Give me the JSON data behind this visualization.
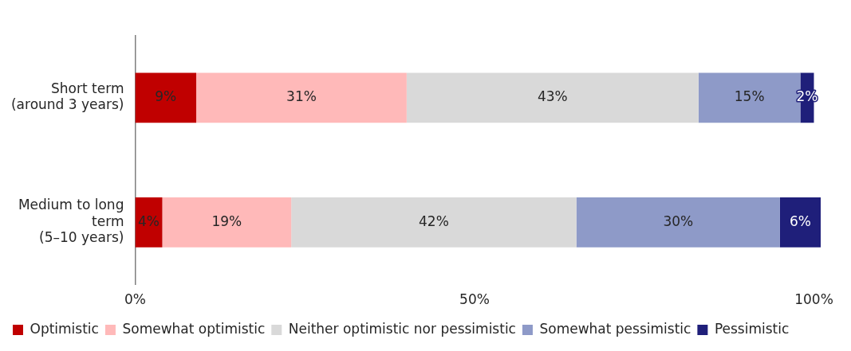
{
  "chart_data": {
    "type": "bar",
    "orientation": "horizontal",
    "stacked": true,
    "categories": [
      "Short term (around 3 years)",
      "Medium to long term (5–10 years)"
    ],
    "series": [
      {
        "name": "Optimistic",
        "color": "#c00000",
        "values": [
          9,
          4
        ]
      },
      {
        "name": "Somewhat optimistic",
        "color": "#ffb9b9",
        "values": [
          31,
          19
        ]
      },
      {
        "name": "Neither optimistic nor pessimistic",
        "color": "#d9d9d9",
        "values": [
          43,
          42
        ]
      },
      {
        "name": "Somewhat pessimistic",
        "color": "#8e9ac8",
        "values": [
          15,
          30
        ]
      },
      {
        "name": "Pessimistic",
        "color": "#1f1f7a",
        "values": [
          2,
          6
        ]
      }
    ],
    "xlim": [
      0,
      101
    ],
    "xticks": [
      {
        "value": 0,
        "label": "0%"
      },
      {
        "value": 50,
        "label": "50%"
      },
      {
        "value": 100,
        "label": "100%"
      }
    ],
    "value_labels": [
      [
        "9%",
        "4%"
      ],
      [
        "31%",
        "19%"
      ],
      [
        "43%",
        "42%"
      ],
      [
        "15%",
        "30%"
      ],
      [
        "2%",
        "6%"
      ]
    ],
    "grid": false,
    "legend": "bottom"
  }
}
